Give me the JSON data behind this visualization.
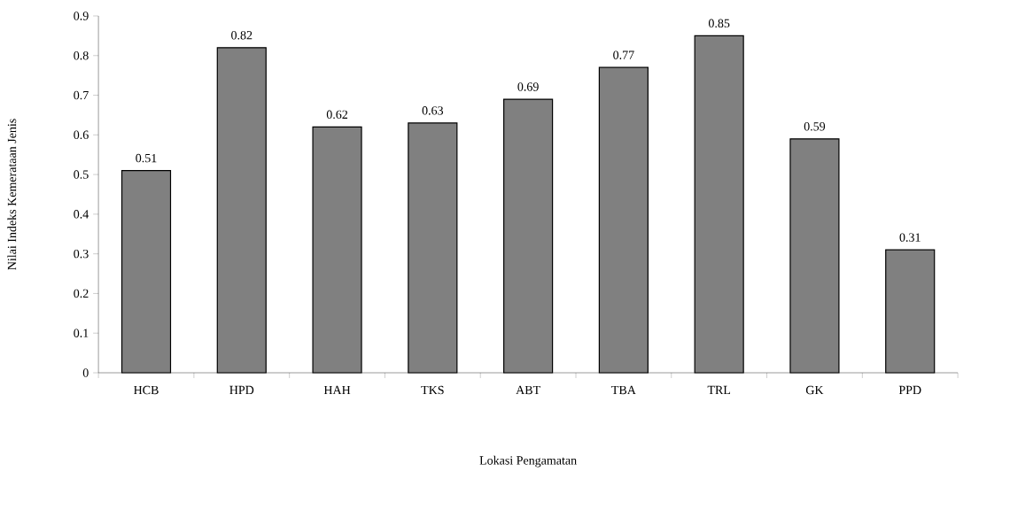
{
  "chart_data": {
    "type": "bar",
    "xlabel": "Lokasi Pengamatan",
    "ylabel": "Nilai Indeks Kemerataan Jenis",
    "categories": [
      "HCB",
      "HPD",
      "HAH",
      "TKS",
      "ABT",
      "TBA",
      "TRL",
      "GK",
      "PPD"
    ],
    "values": [
      0.51,
      0.82,
      0.62,
      0.63,
      0.69,
      0.77,
      0.85,
      0.59,
      0.31
    ],
    "color": "#808080",
    "data_labels": true,
    "grid": false,
    "ylim": [
      0,
      0.9
    ],
    "yticks": [
      0,
      0.1,
      0.2,
      0.3,
      0.4,
      0.5,
      0.6,
      0.7,
      0.8,
      0.9
    ]
  }
}
